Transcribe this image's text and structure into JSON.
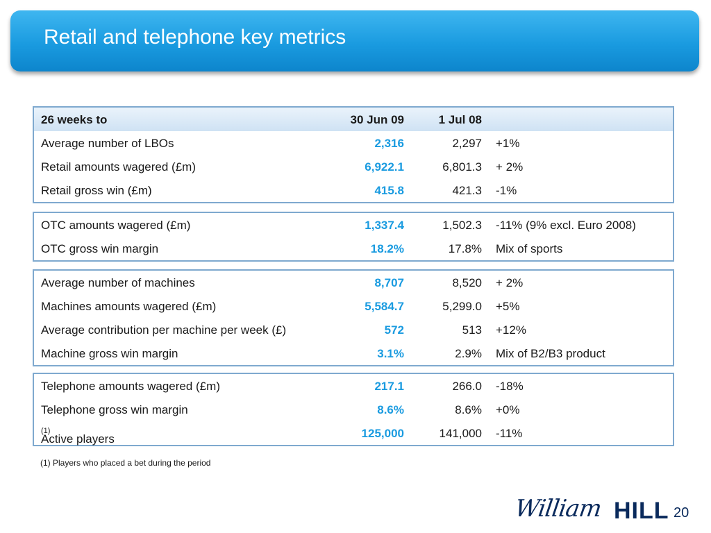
{
  "title": "Retail and telephone key metrics",
  "header": {
    "label": "26 weeks to",
    "current": "30 Jun 09",
    "previous": "1 Jul 08",
    "change": ""
  },
  "groups": [
    [
      {
        "label": "Average number of LBOs",
        "current": "2,316",
        "previous": "2,297",
        "change": "+1%"
      },
      {
        "label": "Retail amounts wagered (£m)",
        "current": "6,922.1",
        "previous": "6,801.3",
        "change": "+ 2%"
      },
      {
        "label": "Retail gross win (£m)",
        "current": "415.8",
        "previous": "421.3",
        "change": "-1%"
      }
    ],
    [
      {
        "label": "OTC amounts wagered (£m)",
        "current": "1,337.4",
        "previous": "1,502.3",
        "change": "-11% (9% excl. Euro 2008)"
      },
      {
        "label": "OTC gross win margin",
        "current": "18.2%",
        "previous": "17.8%",
        "change": "Mix of sports"
      }
    ],
    [
      {
        "label": "Average number of machines",
        "current": "8,707",
        "previous": "8,520",
        "change": "+ 2%"
      },
      {
        "label": "Machines amounts wagered (£m)",
        "current": "5,584.7",
        "previous": "5,299.0",
        "change": "+5%"
      },
      {
        "label": "Average contribution per machine per week (£)",
        "current": "572",
        "previous": "513",
        "change": "+12%"
      },
      {
        "label": "Machine gross win margin",
        "current": "3.1%",
        "previous": "2.9%",
        "change": "Mix of B2/B3 product"
      }
    ],
    [
      {
        "label": "Telephone amounts wagered (£m)",
        "current": "217.1",
        "previous": "266.0",
        "change": "-18%"
      },
      {
        "label": "Telephone gross win margin",
        "current": "8.6%",
        "previous": "8.6%",
        "change": "+0%"
      },
      {
        "label": "Active players",
        "sup": "(1)",
        "current": "125,000",
        "previous": "141,000",
        "change": "-11%"
      }
    ]
  ],
  "footnote": "(1)  Players who placed a bet during the period",
  "logo": {
    "part1": "William",
    "part2": "HILL"
  },
  "page_number": "20",
  "colors": {
    "title_bar": "#1a9be0",
    "highlight_value": "#1a9be0",
    "border": "#7fa9cf",
    "logo": "#0a2a5c"
  }
}
